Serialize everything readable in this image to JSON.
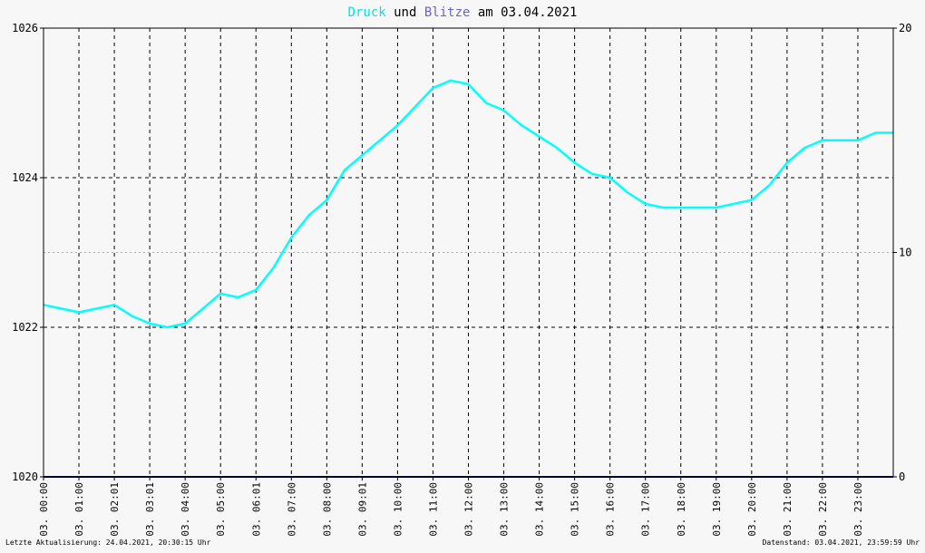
{
  "title": {
    "part1": "Druck",
    "part2": " und ",
    "part3": "Blitze",
    "part4": " am 03.04.2021"
  },
  "colors": {
    "druck": "#00ffff",
    "blitze": "#6666cc",
    "baseline": "#000066",
    "grid": "#000000",
    "background": "#f7f7f7"
  },
  "footer": {
    "left": "Letzte Aktualisierung: 24.04.2021, 20:30:15 Uhr",
    "right": "Datenstand: 03.04.2021, 23:59:59 Uhr"
  },
  "chart_data": {
    "type": "line",
    "title": "Druck und Blitze am 03.04.2021",
    "y_left": {
      "min": 1020,
      "max": 1026,
      "ticks": [
        1020,
        1022,
        1024,
        1026
      ]
    },
    "y_right": {
      "min": 0,
      "max": 20,
      "ticks": [
        0,
        10,
        20
      ]
    },
    "x_ticks": [
      "03. 00:00",
      "03. 01:00",
      "03. 02:01",
      "03. 03:01",
      "03. 04:00",
      "03. 05:00",
      "03. 06:01",
      "03. 07:00",
      "03. 08:00",
      "03. 09:01",
      "03. 10:00",
      "03. 11:00",
      "03. 12:00",
      "03. 13:00",
      "03. 14:00",
      "03. 15:00",
      "03. 16:00",
      "03. 17:00",
      "03. 18:00",
      "03. 19:00",
      "03. 20:00",
      "03. 21:00",
      "03. 22:00",
      "03. 23:00"
    ],
    "x_range_hours": [
      0,
      24
    ],
    "series": [
      {
        "name": "Druck",
        "axis": "left",
        "x": [
          0,
          0.5,
          1,
          1.5,
          2,
          2.5,
          3,
          3.5,
          4,
          4.5,
          5,
          5.5,
          6,
          6.5,
          7,
          7.5,
          8,
          8.5,
          9,
          9.5,
          10,
          10.5,
          11,
          11.5,
          12,
          12.5,
          13,
          13.5,
          14,
          14.5,
          15,
          15.5,
          16,
          16.5,
          17,
          17.5,
          18,
          18.5,
          19,
          19.5,
          20,
          20.5,
          21,
          21.5,
          22,
          22.5,
          23,
          23.5,
          24
        ],
        "values": [
          1022.3,
          1022.25,
          1022.2,
          1022.25,
          1022.3,
          1022.15,
          1022.05,
          1022.0,
          1022.05,
          1022.25,
          1022.45,
          1022.4,
          1022.5,
          1022.8,
          1023.2,
          1023.5,
          1023.7,
          1024.1,
          1024.3,
          1024.5,
          1024.7,
          1024.95,
          1025.2,
          1025.3,
          1025.25,
          1025.0,
          1024.9,
          1024.7,
          1024.55,
          1024.4,
          1024.2,
          1024.05,
          1024.0,
          1023.8,
          1023.65,
          1023.6,
          1023.6,
          1023.6,
          1023.6,
          1023.65,
          1023.7,
          1023.9,
          1024.2,
          1024.4,
          1024.5,
          1024.5,
          1024.5,
          1024.6,
          1024.6
        ]
      },
      {
        "name": "Blitze",
        "axis": "right",
        "x": [
          0,
          24
        ],
        "values": [
          0,
          0
        ]
      }
    ],
    "grid": true,
    "legend": "title"
  }
}
